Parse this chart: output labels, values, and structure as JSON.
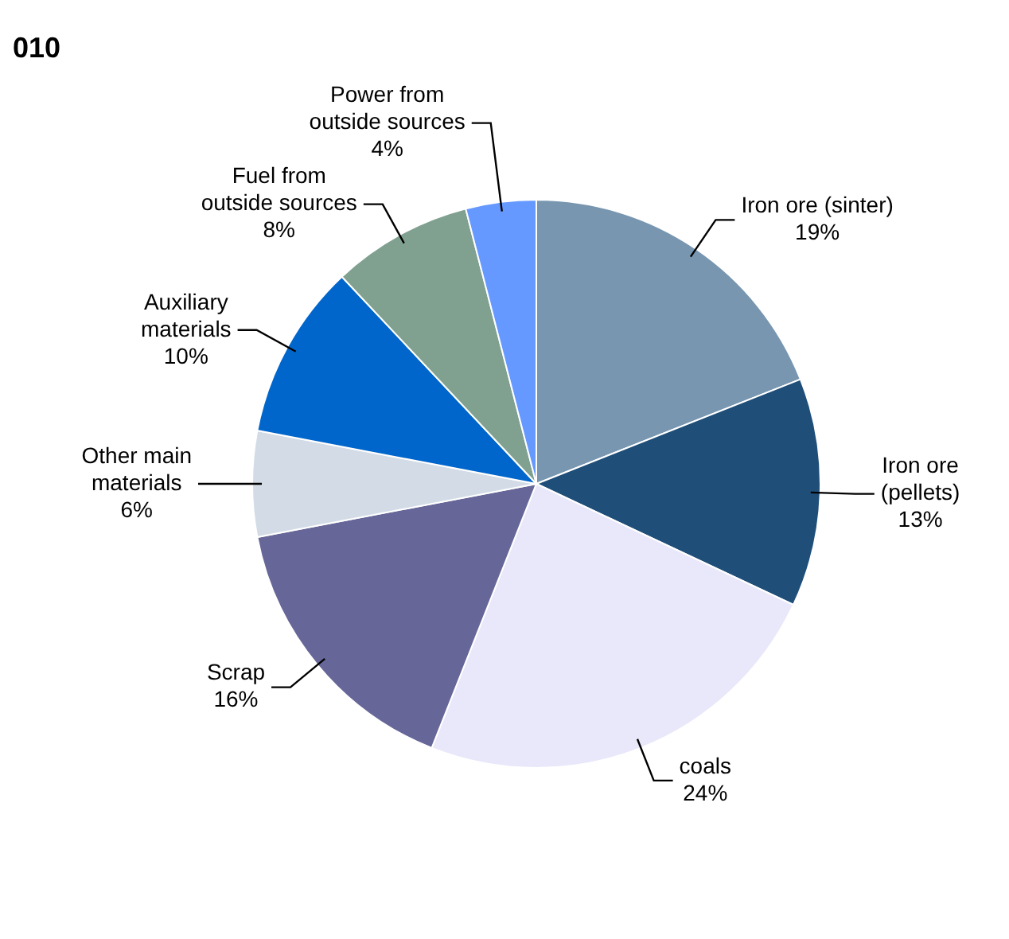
{
  "chart_data": {
    "type": "pie",
    "title": "010",
    "categories": [
      "Iron ore (sinter)",
      "Iron ore (pellets)",
      "coals",
      "Scrap",
      "Other main materials",
      "Auxiliary materials",
      "Fuel from outside sources",
      "Power from outside sources"
    ],
    "values": [
      19,
      13,
      24,
      16,
      6,
      10,
      8,
      4
    ],
    "colors": [
      "#7896b0",
      "#1f4e79",
      "#e8e8fa",
      "#666699",
      "#d3dce6",
      "#0066cc",
      "#80a090",
      "#6699ff"
    ],
    "value_labels": [
      "19%",
      "13%",
      "24%",
      "16%",
      "6%",
      "10%",
      "8%",
      "4%"
    ],
    "legend": false
  }
}
